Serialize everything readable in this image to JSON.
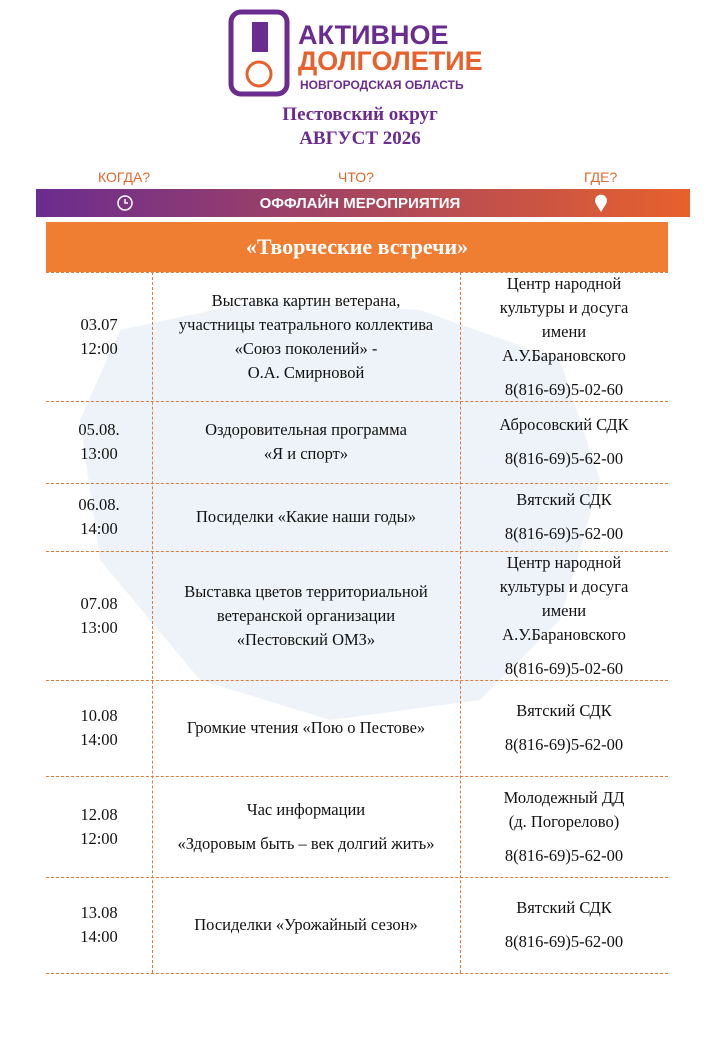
{
  "header": {
    "logo_line1": "АКТИВНОЕ",
    "logo_line2": "ДОЛГОЛЕТИЕ",
    "logo_line3": "НОВГОРОДСКАЯ ОБЛАСТЬ",
    "district": "Пестовский округ",
    "month": "АВГУСТ 2026"
  },
  "banner": {
    "when": "КОГДА?",
    "what": "ЧТО?",
    "where": "ГДЕ?",
    "title": "ОФФЛАЙН МЕРОПРИЯТИЯ"
  },
  "table": {
    "title": "«Творческие встречи»",
    "rows": [
      {
        "when": [
          "03.07",
          "12:00"
        ],
        "what": [
          "Выставка картин ветерана,",
          "участницы театрального коллектива",
          "«Союз поколений» -",
          "О.А. Смирновой"
        ],
        "where": [
          "Центр народной",
          "культуры и досуга",
          "имени",
          "А.У.Барановского"
        ],
        "phone": "8(816-69)5-02-60"
      },
      {
        "when": [
          "05.08.",
          "13:00"
        ],
        "what": [
          "Оздоровительная программа",
          "«Я и спорт»"
        ],
        "where": [
          "Абросовский СДК"
        ],
        "phone": "8(816-69)5-62-00"
      },
      {
        "when": [
          "06.08.",
          "14:00"
        ],
        "what": [
          "Посиделки «Какие наши годы»"
        ],
        "where": [
          "Вятский СДК"
        ],
        "phone": "8(816-69)5-62-00"
      },
      {
        "when": [
          "07.08",
          "13:00"
        ],
        "what": [
          "Выставка цветов территориальной",
          "ветеранской организации",
          "«Пестовский ОМЗ»"
        ],
        "where": [
          "Центр народной",
          "культуры и досуга",
          "имени",
          "А.У.Барановского"
        ],
        "phone": "8(816-69)5-02-60"
      },
      {
        "when": [
          "10.08",
          "14:00"
        ],
        "what": [
          "Громкие чтения «Пою о Пестове»"
        ],
        "where": [
          "Вятский СДК"
        ],
        "phone": "8(816-69)5-62-00"
      },
      {
        "when": [
          "12.08",
          "12:00"
        ],
        "what": [
          "Час информации",
          "«Здоровым быть – век долгий жить»"
        ],
        "where": [
          "Молодежный ДД",
          "(д. Погорелово)"
        ],
        "phone": "8(816-69)5-62-00"
      },
      {
        "when": [
          "13.08",
          "14:00"
        ],
        "what": [
          "Посиделки «Урожайный сезон»"
        ],
        "where": [
          "Вятский СДК"
        ],
        "phone": "8(816-69)5-62-00"
      }
    ]
  }
}
